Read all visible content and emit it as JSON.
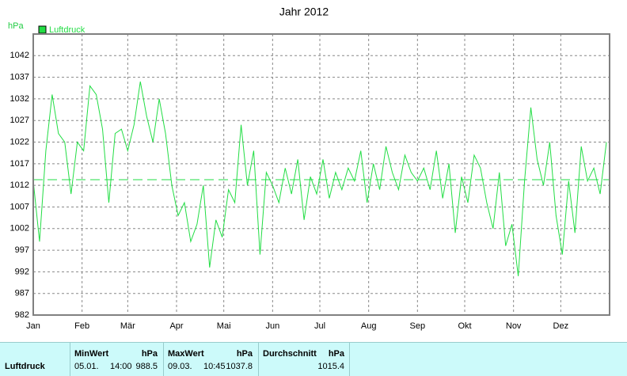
{
  "chart_data": {
    "type": "line",
    "title": "Jahr 2012",
    "y_label": "hPa",
    "xlim": [
      0,
      366
    ],
    "xticks": [
      {
        "value": 0,
        "label": "Jan"
      },
      {
        "value": 31,
        "label": "Feb"
      },
      {
        "value": 60,
        "label": "Mär"
      },
      {
        "value": 91,
        "label": "Apr"
      },
      {
        "value": 121,
        "label": "Mai"
      },
      {
        "value": 152,
        "label": "Jun"
      },
      {
        "value": 182,
        "label": "Jul"
      },
      {
        "value": 213,
        "label": "Aug"
      },
      {
        "value": 244,
        "label": "Sep"
      },
      {
        "value": 274,
        "label": "Okt"
      },
      {
        "value": 305,
        "label": "Nov"
      },
      {
        "value": 335,
        "label": "Dez"
      }
    ],
    "ylim": [
      982,
      1047
    ],
    "yticks": [
      982,
      987,
      992,
      997,
      1002,
      1007,
      1012,
      1017,
      1022,
      1027,
      1032,
      1037,
      1042
    ],
    "grid": true,
    "legend": "top-left",
    "reference_line": 1013.3,
    "x": [
      0,
      4,
      8,
      12,
      16,
      20,
      24,
      28,
      32,
      36,
      40,
      44,
      48,
      52,
      56,
      60,
      64,
      68,
      72,
      76,
      80,
      84,
      88,
      92,
      96,
      100,
      104,
      108,
      112,
      116,
      120,
      124,
      128,
      132,
      136,
      140,
      144,
      148,
      152,
      156,
      160,
      164,
      168,
      172,
      176,
      180,
      184,
      188,
      192,
      196,
      200,
      204,
      208,
      212,
      216,
      220,
      224,
      228,
      232,
      236,
      240,
      244,
      248,
      252,
      256,
      260,
      264,
      268,
      272,
      276,
      280,
      284,
      288,
      292,
      296,
      300,
      304,
      308,
      312,
      316,
      320,
      324,
      328,
      332,
      336,
      340,
      344,
      348,
      352,
      356,
      360,
      364
    ],
    "series": [
      {
        "name": "Luftdruck",
        "color": "#22dd44",
        "values": [
          1013,
          999,
          1020,
          1033,
          1024,
          1022,
          1010,
          1022,
          1020,
          1035,
          1033,
          1025,
          1008,
          1024,
          1025,
          1020,
          1026,
          1036,
          1028,
          1022,
          1032,
          1024,
          1012,
          1005,
          1008,
          999,
          1003,
          1012,
          993,
          1004,
          1000,
          1011,
          1008,
          1026,
          1012,
          1020,
          996,
          1015,
          1012,
          1008,
          1016,
          1010,
          1018,
          1004,
          1014,
          1010,
          1018,
          1009,
          1015,
          1011,
          1016,
          1013,
          1020,
          1008,
          1017,
          1011,
          1021,
          1015,
          1011,
          1019,
          1015,
          1013,
          1016,
          1011,
          1020,
          1009,
          1017,
          1001,
          1014,
          1008,
          1019,
          1016,
          1008,
          1002,
          1015,
          998,
          1003,
          991,
          1013,
          1030,
          1018,
          1012,
          1022,
          1005,
          996,
          1013,
          1001,
          1021,
          1013,
          1016,
          1010,
          1022
        ]
      }
    ]
  },
  "stats": {
    "series_label": "Luftdruck",
    "min": {
      "title": "MinWert",
      "unit": "hPa",
      "date": "05.01.",
      "time": "14:00",
      "value": 988.5
    },
    "max": {
      "title": "MaxWert",
      "unit": "hPa",
      "date": "09.03.",
      "time": "10:45",
      "value": 1037.8
    },
    "avg": {
      "title": "Durchschnitt",
      "unit": "hPa",
      "value": 1015.4
    }
  }
}
